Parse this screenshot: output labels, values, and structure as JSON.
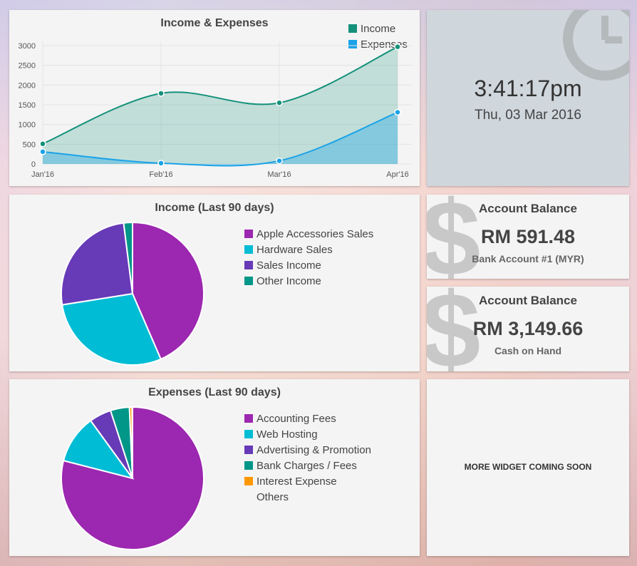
{
  "income_expenses": {
    "title": "Income & Expenses",
    "colors": {
      "income": "#14917a",
      "expenses": "#1aa3e8"
    },
    "chart_data": {
      "type": "area",
      "title": "Income & Expenses",
      "categories": [
        "Jan'16",
        "Feb'16",
        "Mar'16",
        "Apr'16"
      ],
      "yticks": [
        0,
        500,
        1000,
        1500,
        2000,
        2500,
        3000
      ],
      "ylim": [
        0,
        3000
      ],
      "legend_position": "top-right",
      "grid": true,
      "series": [
        {
          "name": "Income",
          "values": [
            510,
            1790,
            1550,
            2970
          ]
        },
        {
          "name": "Expenses",
          "values": [
            310,
            20,
            80,
            1310
          ]
        }
      ]
    }
  },
  "clock": {
    "time": "3:41:17pm",
    "date": "Thu, 03 Mar 2016",
    "icon": "clock-icon"
  },
  "income_pie": {
    "title": "Income (Last 90 days)",
    "chart_data": {
      "type": "pie",
      "title": "Income (Last 90 days)",
      "legend_position": "right",
      "categories": [
        "Apple Accessories Sales",
        "Hardware Sales",
        "Sales Income",
        "Other Income"
      ],
      "values": [
        43.5,
        29.0,
        25.5,
        2.0
      ],
      "colors": [
        "#9c27b0",
        "#00bcd4",
        "#673ab7",
        "#009688"
      ]
    }
  },
  "expenses_pie": {
    "title": "Expenses (Last 90 days)",
    "chart_data": {
      "type": "pie",
      "title": "Expenses (Last 90 days)",
      "legend_position": "right",
      "categories": [
        "Accounting Fees",
        "Web Hosting",
        "Advertising & Promotion",
        "Bank Charges / Fees",
        "Interest Expense",
        "Others"
      ],
      "values": [
        79.0,
        11.0,
        5.0,
        4.3,
        0.6,
        0.1
      ],
      "colors": [
        "#9c27b0",
        "#00bcd4",
        "#673ab7",
        "#009688",
        "#ff9800",
        "#f4f4f4"
      ]
    }
  },
  "balance1": {
    "title": "Account Balance",
    "amount": "RM 591.48",
    "account": "Bank Account #1 (MYR)",
    "icon_glyph": "$"
  },
  "balance2": {
    "title": "Account Balance",
    "amount": "RM 3,149.66",
    "account": "Cash on Hand",
    "icon_glyph": "$"
  },
  "more": {
    "text": "MORE WIDGET COMING SOON"
  }
}
